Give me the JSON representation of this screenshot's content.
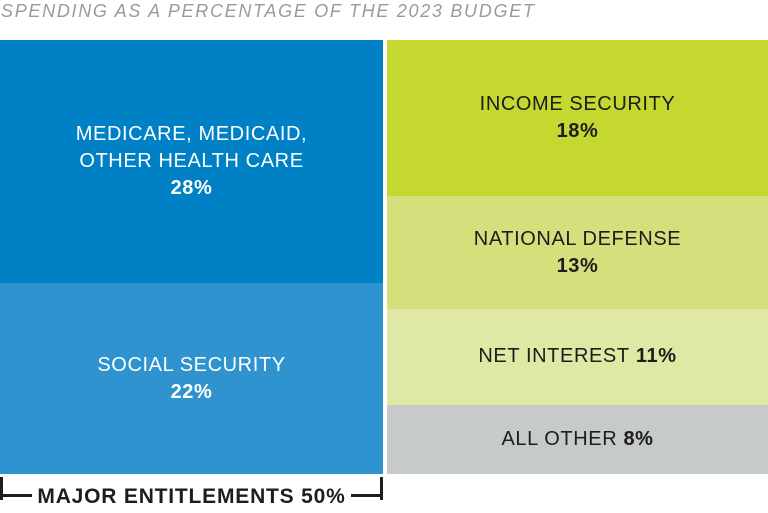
{
  "title": "SPENDING AS A PERCENTAGE OF THE 2023 BUDGET",
  "colors": {
    "medicare_blue": "#0081c6",
    "social_security_blue": "#2e93cf",
    "income_security_green": "#c4d82f",
    "national_defense_green": "#d5e07c",
    "net_interest_green": "#dfe8a4",
    "all_other_gray": "#c7cacb",
    "title_gray": "#9a9a9a",
    "dark_text": "#1d1d1b",
    "light_text": "#ffffff"
  },
  "chart_data": {
    "type": "treemap",
    "title": "SPENDING AS A PERCENTAGE OF THE 2023 BUDGET",
    "unit": "percent of 2023 budget",
    "legend_position": "none",
    "columns": [
      {
        "name": "major-entitlements",
        "share": 50,
        "segments": [
          {
            "id": "medicare-medicaid-other-health-care",
            "label": "MEDICARE, MEDICAID, OTHER HEALTH CARE",
            "label_lines": [
              "MEDICARE, MEDICAID,",
              "OTHER HEALTH CARE"
            ],
            "value": 28,
            "value_label": "28%",
            "color": "#0081c6",
            "text_color": "#ffffff"
          },
          {
            "id": "social-security",
            "label": "SOCIAL SECURITY",
            "value": 22,
            "value_label": "22%",
            "color": "#2e93cf",
            "text_color": "#ffffff"
          }
        ]
      },
      {
        "name": "other-spending",
        "share": 50,
        "segments": [
          {
            "id": "income-security",
            "label": "INCOME SECURITY",
            "value": 18,
            "value_label": "18%",
            "color": "#c4d82f",
            "text_color": "#1d1d1b"
          },
          {
            "id": "national-defense",
            "label": "NATIONAL DEFENSE",
            "value": 13,
            "value_label": "13%",
            "color": "#d5e07c",
            "text_color": "#1d1d1b"
          },
          {
            "id": "net-interest",
            "label": "NET INTEREST",
            "value": 11,
            "value_label": "11%",
            "color": "#dfe8a4",
            "text_color": "#1d1d1b"
          },
          {
            "id": "all-other",
            "label": "ALL OTHER",
            "value": 8,
            "value_label": "8%",
            "color": "#c7cacb",
            "text_color": "#1d1d1b"
          }
        ]
      }
    ],
    "bracket": {
      "label": "MAJOR ENTITLEMENTS 50%",
      "applies_to": "major-entitlements"
    }
  }
}
